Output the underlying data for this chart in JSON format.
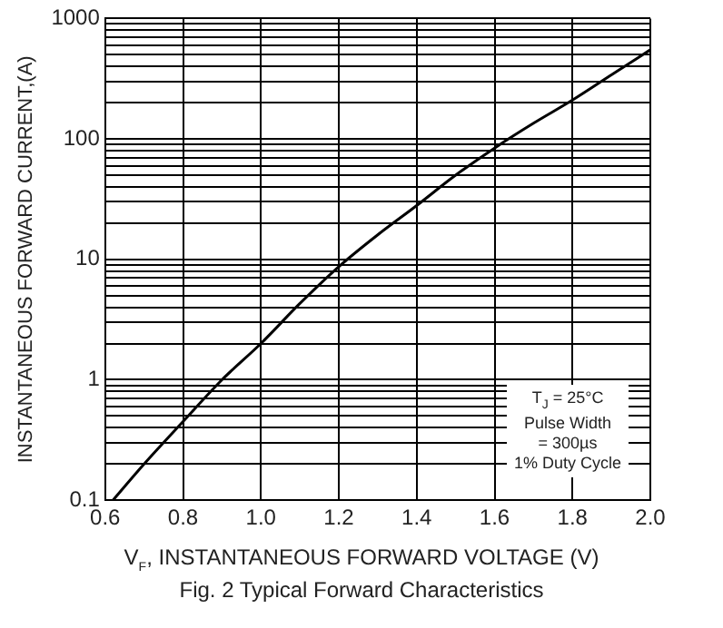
{
  "chart_data": {
    "type": "line",
    "title": "Fig. 2 Typical Forward Characteristics",
    "xlabel": "V$_{F}$, INSTANTANEOUS FORWARD VOLTAGE (V)",
    "ylabel": "INSTANTANEOUS FORWARD CURRENT,(A)",
    "x": [
      0.62,
      0.7,
      0.8,
      0.9,
      1.0,
      1.1,
      1.2,
      1.3,
      1.4,
      1.5,
      1.6,
      1.7,
      1.8,
      1.9,
      2.0
    ],
    "series": [
      {
        "color": "#000000",
        "values": [
          0.1,
          0.2,
          0.45,
          1.0,
          2.0,
          4.3,
          8.7,
          16,
          28,
          50,
          84,
          135,
          210,
          340,
          550
        ]
      }
    ],
    "xlim": [
      0.6,
      2.0
    ],
    "xticks": [
      {
        "value": 0.6,
        "label": "0.6"
      },
      {
        "value": 0.8,
        "label": "0.8"
      },
      {
        "value": 1.0,
        "label": "1.0"
      },
      {
        "value": 1.2,
        "label": "1.2"
      },
      {
        "value": 1.4,
        "label": "1.4"
      },
      {
        "value": 1.6,
        "label": "1.6"
      },
      {
        "value": 1.8,
        "label": "1.8"
      },
      {
        "value": 2.0,
        "label": "2.0"
      }
    ],
    "ylim": [
      0.1,
      1000
    ],
    "yticks": [
      0.1,
      {
        "value": 0.2,
        "label": null
      },
      {
        "value": 0.3,
        "label": null
      },
      {
        "value": 0.4,
        "label": null
      },
      {
        "value": 0.5,
        "label": null
      },
      {
        "value": 0.6,
        "label": null
      },
      {
        "value": 0.7,
        "label": null
      },
      {
        "value": 0.8,
        "label": null
      },
      {
        "value": 0.9,
        "label": null
      },
      1,
      {
        "value": 2,
        "label": null
      },
      {
        "value": 3,
        "label": null
      },
      {
        "value": 4,
        "label": null
      },
      {
        "value": 5,
        "label": null
      },
      {
        "value": 6,
        "label": null
      },
      {
        "value": 7,
        "label": null
      },
      {
        "value": 8,
        "label": null
      },
      {
        "value": 9,
        "label": null
      },
      10,
      {
        "value": 20,
        "label": null
      },
      {
        "value": 30,
        "label": null
      },
      {
        "value": 40,
        "label": null
      },
      {
        "value": 50,
        "label": null
      },
      {
        "value": 60,
        "label": null
      },
      {
        "value": 70,
        "label": null
      },
      {
        "value": 80,
        "label": null
      },
      {
        "value": 90,
        "label": null
      },
      100,
      {
        "value": 200,
        "label": null
      },
      {
        "value": 300,
        "label": null
      },
      {
        "value": 400,
        "label": null
      },
      {
        "value": 500,
        "label": null
      },
      {
        "value": 600,
        "label": null
      },
      {
        "value": 700,
        "label": null
      },
      {
        "value": 800,
        "label": null
      },
      {
        "value": 900,
        "label": null
      },
      1000
    ],
    "log": "y",
    "grid": true,
    "legend": false,
    "marker": "none",
    "line_style": "solid",
    "annotations": [
      "T$_{J}$ = 25°C\nPulse Width\n= 300µs\n1% Duty Cycle"
    ]
  }
}
